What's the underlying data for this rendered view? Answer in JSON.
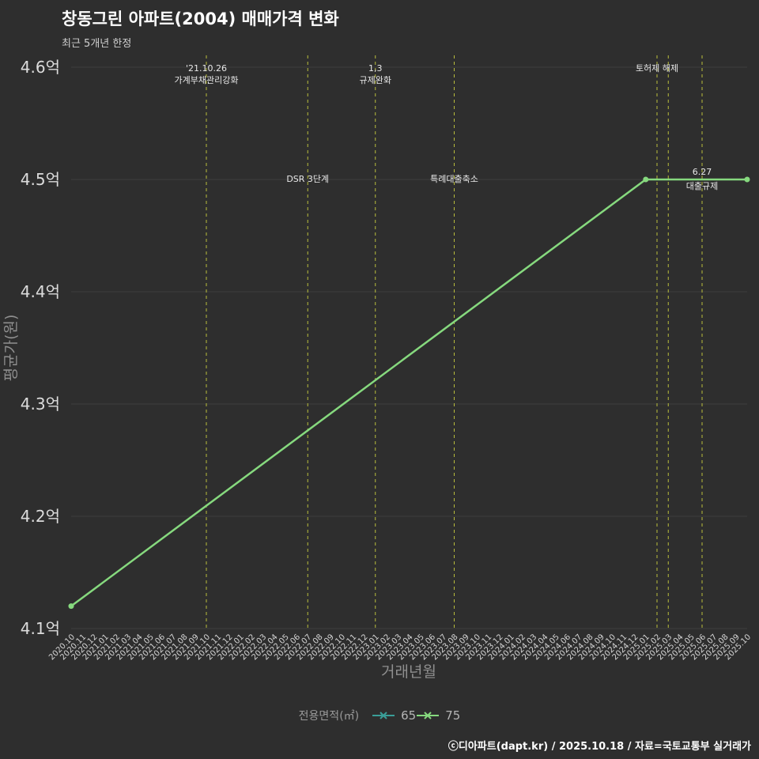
{
  "header": {
    "title": "창동그린 아파트(2004) 매매가격 변화",
    "subtitle": "최근 5개년 한정"
  },
  "footer": {
    "credit": "ⓒ디아파트(dapt.kr) / 2025.10.18 / 자료=국토교통부 실거래가"
  },
  "legend": {
    "title": "전용면적(㎡)",
    "items": [
      {
        "label": "65",
        "color": "#3a9e98"
      },
      {
        "label": "75",
        "color": "#86d97e"
      }
    ]
  },
  "chart_data": {
    "type": "line",
    "title": "창동그린 아파트(2004) 매매가격 변화",
    "subtitle": "최근 5개년 한정",
    "xlabel": "거래년월",
    "ylabel": "평균가(원)",
    "ylim": [
      4.1,
      4.6
    ],
    "unit": "억",
    "grid": "horizontal",
    "legend_position": "bottom",
    "y_ticks": [
      {
        "value": 4.6,
        "label": "4.6억"
      },
      {
        "value": 4.5,
        "label": "4.5억"
      },
      {
        "value": 4.4,
        "label": "4.4억"
      },
      {
        "value": 4.3,
        "label": "4.3억"
      },
      {
        "value": 4.2,
        "label": "4.2억"
      },
      {
        "value": 4.1,
        "label": "4.1억"
      }
    ],
    "x_categories": [
      "2020.10",
      "2020.11",
      "2020.12",
      "2021.01",
      "2021.02",
      "2021.03",
      "2021.04",
      "2021.05",
      "2021.06",
      "2021.07",
      "2021.08",
      "2021.09",
      "2021.10",
      "2021.11",
      "2021.12",
      "2022.01",
      "2022.02",
      "2022.03",
      "2022.04",
      "2022.05",
      "2022.06",
      "2022.07",
      "2022.08",
      "2022.09",
      "2022.10",
      "2022.11",
      "2022.12",
      "2023.01",
      "2023.02",
      "2023.03",
      "2023.04",
      "2023.05",
      "2023.06",
      "2023.07",
      "2023.08",
      "2023.09",
      "2023.10",
      "2023.11",
      "2023.12",
      "2024.01",
      "2024.02",
      "2024.03",
      "2024.04",
      "2024.05",
      "2024.06",
      "2024.07",
      "2024.08",
      "2024.09",
      "2024.10",
      "2024.11",
      "2024.12",
      "2025.01",
      "2025.02",
      "2025.03",
      "2025.04",
      "2025.05",
      "2025.06",
      "2025.07",
      "2025.08",
      "2025.09",
      "2025.10"
    ],
    "series": [
      {
        "name": "65",
        "color": "#3a9e98",
        "points": []
      },
      {
        "name": "75",
        "color": "#86d97e",
        "points": [
          {
            "x": "2020.10",
            "y": 4.12
          },
          {
            "x": "2025.01",
            "y": 4.5
          },
          {
            "x": "2025.10",
            "y": 4.5
          }
        ]
      }
    ],
    "annotations": [
      {
        "x": "2021.10",
        "lines": [
          "'21.10.26",
          "가계부채관리강화"
        ],
        "pos": "top"
      },
      {
        "x": "2022.07",
        "lines": [
          "DSR 3단계"
        ],
        "pos": "mid"
      },
      {
        "x": "2023.01",
        "lines": [
          "1,3",
          "규제완화"
        ],
        "pos": "top"
      },
      {
        "x": "2023.08",
        "lines": [
          "특례대출축소"
        ],
        "pos": "mid"
      },
      {
        "x": "2025.02",
        "lines": [
          "토허제 해제"
        ],
        "pos": "top"
      },
      {
        "x": "2025.03",
        "lines": [],
        "pos": "top"
      },
      {
        "x": "2025.06",
        "lines": [
          "6.27",
          "대출규제"
        ],
        "pos": "mid"
      }
    ],
    "colors": {
      "background": "#2e2e2e",
      "grid": "#3e3e3e",
      "annotation_line": "#b9bd3c",
      "tick_text": "#dcdcdc",
      "axis_title_text": "#8f8f8f",
      "annotation_text": "#e8e8e8"
    }
  }
}
